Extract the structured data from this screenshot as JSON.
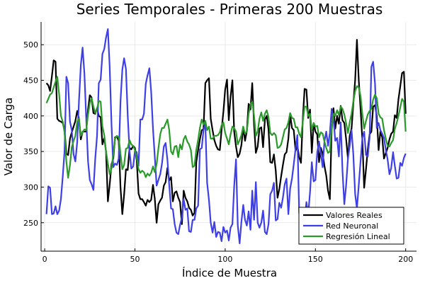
{
  "chart_data": {
    "type": "line",
    "title": "Series Temporales - Primeras 200 Muestras",
    "xlabel": "Índice de Muestra",
    "ylabel": "Valor de Carga",
    "xlim": [
      -2,
      206
    ],
    "ylim": [
      210,
      532
    ],
    "xticks": [
      0,
      50,
      100,
      150,
      200
    ],
    "yticks": [
      250,
      300,
      350,
      400,
      450,
      500
    ],
    "grid": true,
    "legend_position": "bottom-right",
    "x": [
      1,
      2,
      3,
      4,
      5,
      6,
      7,
      8,
      9,
      10,
      11,
      12,
      13,
      14,
      15,
      16,
      17,
      18,
      19,
      20,
      21,
      22,
      23,
      24,
      25,
      26,
      27,
      28,
      29,
      30,
      31,
      32,
      33,
      34,
      35,
      36,
      37,
      38,
      39,
      40,
      41,
      42,
      43,
      44,
      45,
      46,
      47,
      48,
      49,
      50,
      51,
      52,
      53,
      54,
      55,
      56,
      57,
      58,
      59,
      60,
      61,
      62,
      63,
      64,
      65,
      66,
      67,
      68,
      69,
      70,
      71,
      72,
      73,
      74,
      75,
      76,
      77,
      78,
      79,
      80,
      81,
      82,
      83,
      84,
      85,
      86,
      87,
      88,
      89,
      90,
      91,
      92,
      93,
      94,
      95,
      96,
      97,
      98,
      99,
      100,
      101,
      102,
      103,
      104,
      105,
      106,
      107,
      108,
      109,
      110,
      111,
      112,
      113,
      114,
      115,
      116,
      117,
      118,
      119,
      120,
      121,
      122,
      123,
      124,
      125,
      126,
      127,
      128,
      129,
      130,
      131,
      132,
      133,
      134,
      135,
      136,
      137,
      138,
      139,
      140,
      141,
      142,
      143,
      144,
      145,
      146,
      147,
      148,
      149,
      150,
      151,
      152,
      153,
      154,
      155,
      156,
      157,
      158,
      159,
      160,
      161,
      162,
      163,
      164,
      165,
      166,
      167,
      168,
      169,
      170,
      171,
      172,
      173,
      174,
      175,
      176,
      177,
      178,
      179,
      180,
      181,
      182,
      183,
      184,
      185,
      186,
      187,
      188,
      189,
      190,
      191,
      192,
      193,
      194,
      195,
      196,
      197,
      198,
      199,
      200
    ],
    "series": [
      {
        "name": "Valores Reales",
        "color": "#000000",
        "values": [
          446,
          443,
          435,
          456,
          478,
          476,
          396,
          393,
          392,
          390,
          380,
          347,
          345,
          368,
          377,
          385,
          393,
          407,
          396,
          367,
          378,
          378,
          378,
          409,
          429,
          426,
          404,
          403,
          411,
          400,
          398,
          360,
          369,
          350,
          280,
          303,
          332,
          340,
          370,
          371,
          365,
          300,
          262,
          289,
          325,
          324,
          355,
          353,
          358,
          355,
          338,
          291,
          283,
          283,
          279,
          274,
          282,
          279,
          282,
          303,
          284,
          250,
          276,
          281,
          285,
          302,
          307,
          327,
          309,
          314,
          280,
          292,
          294,
          285,
          279,
          248,
          295,
          285,
          280,
          271,
          268,
          260,
          264,
          335,
          352,
          367,
          380,
          381,
          446,
          450,
          453,
          396,
          380,
          366,
          358,
          353,
          352,
          380,
          406,
          437,
          451,
          394,
          427,
          450,
          378,
          357,
          342,
          347,
          359,
          384,
          365,
          379,
          417,
          409,
          446,
          387,
          348,
          357,
          382,
          384,
          356,
          395,
          400,
          381,
          335,
          334,
          346,
          323,
          285,
          297,
          315,
          331,
          346,
          349,
          368,
          402,
          383,
          380,
          351,
          358,
          342,
          334,
          396,
          438,
          437,
          397,
          409,
          348,
          390,
          378,
          374,
          335,
          355,
          347,
          330,
          316,
          295,
          283,
          380,
          411,
          382,
          400,
          389,
          414,
          394,
          390,
          368,
          340,
          372,
          382,
          417,
          450,
          507,
          450,
          410,
          366,
          299,
          325,
          353,
          374,
          378,
          413,
          415,
          400,
          352,
          378,
          370,
          340,
          348,
          355,
          367,
          375,
          378,
          401,
          397,
          423,
          442,
          460,
          462,
          403
        ]
      },
      {
        "name": "Red Neuronal",
        "color": "#3f3fe8",
        "values": [
          262,
          301,
          299,
          262,
          263,
          273,
          262,
          267,
          283,
          315,
          350,
          455,
          446,
          392,
          380,
          346,
          336,
          363,
          421,
          471,
          496,
          459,
          397,
          336,
          310,
          304,
          296,
          339,
          372,
          446,
          451,
          487,
          494,
          510,
          522,
          470,
          389,
          328,
          333,
          331,
          340,
          420,
          465,
          481,
          466,
          401,
          350,
          326,
          329,
          351,
          349,
          330,
          395,
          395,
          403,
          445,
          457,
          467,
          434,
          382,
          343,
          302,
          310,
          318,
          333,
          357,
          362,
          338,
          303,
          270,
          269,
          248,
          236,
          234,
          247,
          257,
          283,
          268,
          270,
          238,
          237,
          254,
          254,
          270,
          274,
          353,
          355,
          380,
          389,
          306,
          282,
          250,
          236,
          251,
          230,
          237,
          236,
          224,
          244,
          236,
          239,
          225,
          243,
          248,
          301,
          339,
          246,
          221,
          251,
          275,
          254,
          246,
          266,
          240,
          295,
          254,
          307,
          250,
          243,
          250,
          267,
          237,
          234,
          248,
          290,
          295,
          306,
          253,
          255,
          278,
          271,
          285,
          304,
          312,
          262,
          298,
          312,
          332,
          354,
          373,
          263,
          249,
          260,
          253,
          279,
          261,
          293,
          335,
          308,
          310,
          349,
          364,
          347,
          328,
          364,
          378,
          358,
          376,
          410,
          397,
          365,
          369,
          343,
          391,
          323,
          276,
          302,
          340,
          358,
          380,
          346,
          290,
          270,
          303,
          336,
          369,
          378,
          345,
          343,
          370,
          469,
          476,
          446,
          383,
          390,
          380,
          375,
          369,
          352,
          339,
          318,
          327,
          349,
          330,
          312,
          313,
          334,
          330,
          341,
          347
        ]
      },
      {
        "name": "Regresión Lineal",
        "color": "#2a9b2a",
        "values": [
          418,
          424,
          430,
          432,
          440,
          448,
          455,
          430,
          400,
          392,
          377,
          336,
          313,
          331,
          356,
          365,
          372,
          392,
          396,
          372,
          377,
          381,
          380,
          402,
          418,
          425,
          413,
          404,
          410,
          421,
          420,
          385,
          373,
          350,
          333,
          318,
          326,
          346,
          368,
          372,
          370,
          347,
          325,
          331,
          354,
          355,
          366,
          360,
          358,
          352,
          342,
          325,
          320,
          323,
          321,
          314,
          319,
          316,
          320,
          329,
          321,
          332,
          354,
          374,
          383,
          383,
          389,
          395,
          380,
          350,
          346,
          357,
          358,
          342,
          360,
          353,
          367,
          372,
          364,
          360,
          352,
          328,
          330,
          352,
          366,
          383,
          395,
          388,
          393,
          380,
          385,
          368,
          368,
          372,
          372,
          373,
          377,
          387,
          391,
          376,
          368,
          360,
          374,
          385,
          383,
          378,
          360,
          366,
          373,
          385,
          375,
          378,
          403,
          416,
          420,
          400,
          372,
          378,
          396,
          405,
          393,
          403,
          408,
          398,
          376,
          373,
          376,
          373,
          355,
          356,
          360,
          370,
          381,
          383,
          391,
          404,
          397,
          396,
          384,
          384,
          375,
          370,
          392,
          413,
          413,
          400,
          403,
          380,
          390,
          385,
          386,
          370,
          377,
          375,
          364,
          355,
          348,
          350,
          383,
          403,
          400,
          408,
          401,
          413,
          410,
          402,
          390,
          376,
          391,
          403,
          420,
          435,
          442,
          440,
          428,
          402,
          382,
          393,
          402,
          407,
          410,
          423,
          430,
          425,
          403,
          398,
          396,
          380,
          368,
          358,
          357,
          362,
          366,
          382,
          390,
          400,
          412,
          424,
          420,
          378
        ]
      }
    ]
  }
}
